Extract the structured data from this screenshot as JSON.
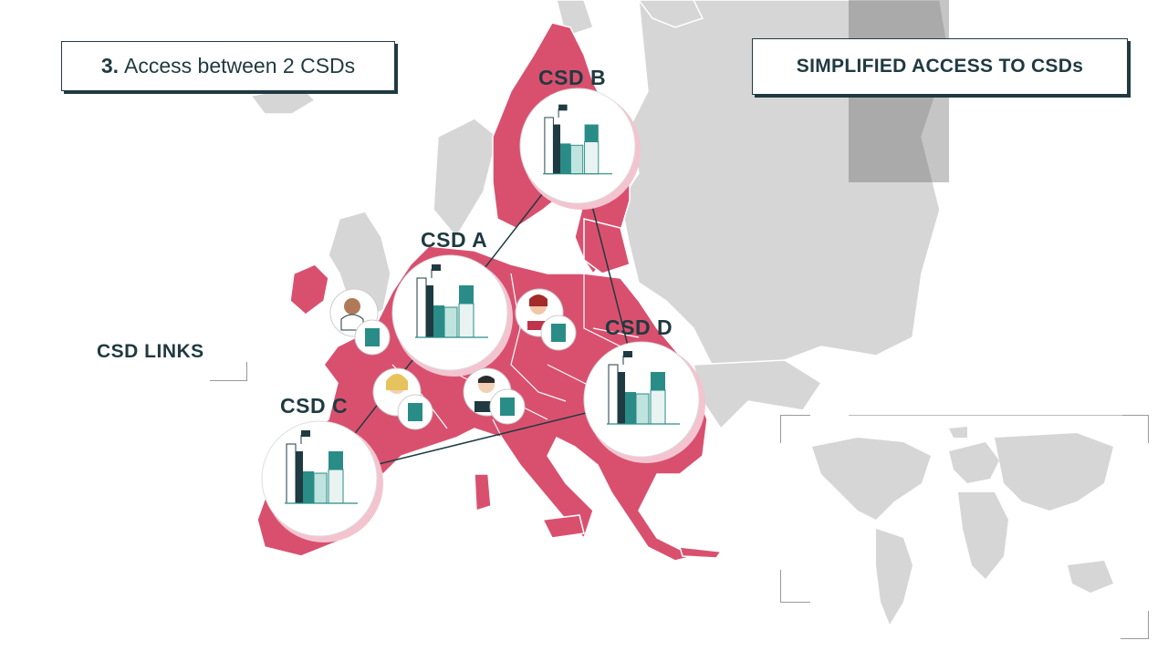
{
  "header": {
    "step_number": "3.",
    "step_text": "Access between 2 CSDs",
    "title": "SIMPLIFIED ACCESS TO CSDs"
  },
  "legend": {
    "links_label": "CSD LINKS"
  },
  "csds": [
    {
      "id": "a",
      "label": "CSD A"
    },
    {
      "id": "b",
      "label": "CSD B"
    },
    {
      "id": "c",
      "label": "CSD C"
    },
    {
      "id": "d",
      "label": "CSD D"
    }
  ],
  "colors": {
    "eu_pink": "#d9506f",
    "land_grey": "#d6d6d6",
    "teal": "#2a8c86",
    "dark": "#1f3a40"
  },
  "icons": [
    "building-icon",
    "flag-icon",
    "person-icon",
    "world-map-icon"
  ]
}
